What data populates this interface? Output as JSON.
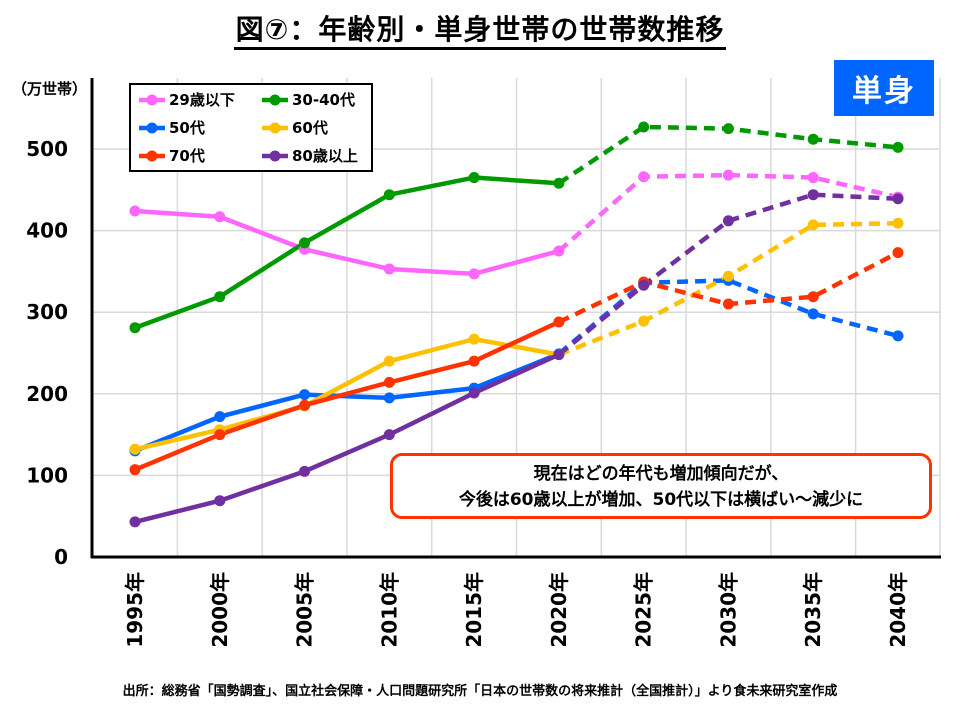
{
  "header": {
    "title": "図⑦：年齢別・単身世帯の世帯数推移",
    "badge": "単身"
  },
  "note": {
    "line1": "現在はどの年代も増加傾向だが、",
    "line2": "今後は60歳以上が増加、50代以下は横ばい～減少に"
  },
  "source": "出所：総務省「国勢調査」、国立社会保障・人口問題研究所「日本の世帯数の将来推計（全国推計）」より食未来研究室作成",
  "chart_data": {
    "type": "line",
    "title": "図⑦：年齢別・単身世帯の世帯数推移",
    "ylabel": "（万世帯）",
    "xlabel": "",
    "categories": [
      "1995年",
      "2000年",
      "2005年",
      "2010年",
      "2015年",
      "2020年",
      "2025年",
      "2030年",
      "2035年",
      "2040年"
    ],
    "yticks": [
      "0",
      "100",
      "200",
      "300",
      "400",
      "500"
    ],
    "ytick_values": [
      0,
      100,
      200,
      300,
      400,
      500
    ],
    "ylim": [
      0,
      587
    ],
    "grid": true,
    "legend_position": "top-left",
    "projection_start_index": 5,
    "series": [
      {
        "name": "29歳以下",
        "color": "#ff66ff",
        "values": [
          424,
          417,
          377,
          353,
          347,
          375,
          466,
          468,
          465,
          441
        ]
      },
      {
        "name": "30-40代",
        "color": "#009900",
        "values": [
          281,
          319,
          385,
          444,
          465,
          458,
          527,
          525,
          512,
          502
        ]
      },
      {
        "name": "50代",
        "color": "#0066ff",
        "values": [
          130,
          172,
          199,
          195,
          207,
          249,
          336,
          339,
          298,
          271
        ]
      },
      {
        "name": "60代",
        "color": "#ffc000",
        "values": [
          132,
          156,
          185,
          240,
          267,
          248,
          289,
          344,
          407,
          409
        ]
      },
      {
        "name": "70代",
        "color": "#ff3300",
        "values": [
          107,
          150,
          186,
          214,
          240,
          288,
          337,
          310,
          319,
          373
        ]
      },
      {
        "name": "80歳以上",
        "color": "#7030a0",
        "values": [
          43,
          69,
          105,
          150,
          201,
          248,
          333,
          412,
          444,
          439
        ]
      }
    ]
  }
}
